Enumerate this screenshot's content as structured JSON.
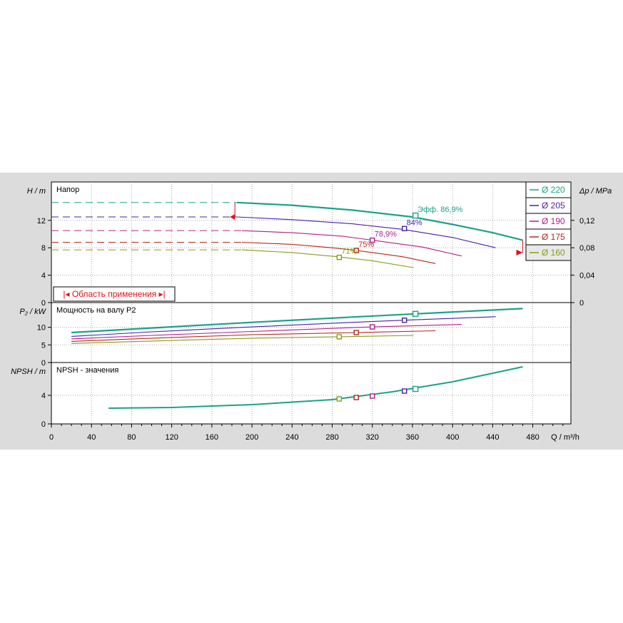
{
  "chart_data": {
    "type": "line",
    "x_unit_label": "Q / m³/h",
    "x_ticks": [
      0,
      40,
      80,
      120,
      160,
      200,
      240,
      280,
      320,
      360,
      400,
      440,
      480
    ],
    "xlim": [
      0,
      518
    ],
    "application_range_label": "Область применения",
    "series": [
      {
        "name": "Ø 220",
        "color": "#1aa387",
        "width": 2.2
      },
      {
        "name": "Ø 205",
        "color": "#4b1fa8",
        "width": 1.1
      },
      {
        "name": "Ø 190",
        "color": "#b0208a",
        "width": 1.1
      },
      {
        "name": "Ø 175",
        "color": "#b02a1a",
        "width": 1.1
      },
      {
        "name": "Ø 160",
        "color": "#8b9a1a",
        "width": 1.1
      }
    ],
    "panels": [
      {
        "id": "head",
        "title": "Напор",
        "ylabel": "H / m",
        "ylim": [
          0,
          17.6
        ],
        "y_ticks": [
          0,
          4,
          8,
          12
        ],
        "secondary_ylabel": "Δp / MPa",
        "secondary_ticks": [
          "0",
          "0,04",
          "0,08",
          "0,12"
        ],
        "curves": [
          {
            "x": [
              185,
              240,
              300,
              360,
              400,
              440,
              470
            ],
            "y": [
              14.6,
              14.2,
              13.5,
              12.5,
              11.4,
              10.2,
              9.1
            ],
            "dash_to": 185
          },
          {
            "x": [
              185,
              240,
              300,
              350,
              400,
              443
            ],
            "y": [
              12.5,
              12.1,
              11.5,
              10.7,
              9.5,
              8.0
            ],
            "dash_to": 185
          },
          {
            "x": [
              190,
              240,
              290,
              320,
              370,
              409
            ],
            "y": [
              10.5,
              10.2,
              9.7,
              9.1,
              8.1,
              6.8
            ],
            "dash_to": 190
          },
          {
            "x": [
              190,
              240,
              280,
              305,
              350,
              383
            ],
            "y": [
              8.8,
              8.5,
              8.0,
              7.6,
              6.7,
              5.7
            ],
            "dash_to": 190
          },
          {
            "x": [
              190,
              240,
              285,
              320,
              361
            ],
            "y": [
              7.7,
              7.3,
              6.7,
              6.1,
              5.1
            ],
            "dash_to": 190
          }
        ],
        "markers": [
          {
            "series": 0,
            "x": 363,
            "y": 12.7,
            "label": "Эфф.  86,9%"
          },
          {
            "series": 1,
            "x": 352,
            "y": 10.8,
            "label": "84%"
          },
          {
            "series": 2,
            "x": 320,
            "y": 9.1,
            "label": "78,9%"
          },
          {
            "series": 3,
            "x": 304,
            "y": 7.6,
            "label": "75%"
          },
          {
            "series": 4,
            "x": 287,
            "y": 6.6,
            "label": "71%"
          }
        ]
      },
      {
        "id": "power",
        "title": "Мощность на валу P2",
        "ylabel": "P₂ / kW",
        "ylim": [
          0,
          17
        ],
        "y_ticks": [
          0,
          5,
          10
        ],
        "curves": [
          {
            "x": [
              20,
              100,
              200,
              300,
              363,
              470
            ],
            "y": [
              8.5,
              9.8,
              11.4,
              12.9,
              13.8,
              15.3
            ],
            "dash_to": 40
          },
          {
            "x": [
              20,
              100,
              200,
              300,
              352,
              443
            ],
            "y": [
              7.4,
              8.7,
              10.1,
              11.4,
              12.0,
              13.0
            ],
            "dash_to": 40
          },
          {
            "x": [
              20,
              100,
              200,
              300,
              320,
              409
            ],
            "y": [
              6.7,
              7.7,
              8.8,
              9.9,
              10.1,
              10.8
            ],
            "dash_to": 40
          },
          {
            "x": [
              20,
              100,
              200,
              304,
              383
            ],
            "y": [
              6.0,
              6.9,
              7.9,
              8.5,
              9.0
            ],
            "dash_to": 40
          },
          {
            "x": [
              20,
              100,
              200,
              287,
              361
            ],
            "y": [
              5.4,
              6.1,
              6.9,
              7.3,
              7.7
            ],
            "dash_to": 40
          }
        ],
        "markers": [
          {
            "series": 0,
            "x": 363,
            "y": 13.8
          },
          {
            "series": 1,
            "x": 352,
            "y": 12.0
          },
          {
            "series": 2,
            "x": 320,
            "y": 10.1
          },
          {
            "series": 3,
            "x": 304,
            "y": 8.5
          },
          {
            "series": 4,
            "x": 287,
            "y": 7.3
          }
        ]
      },
      {
        "id": "npsh",
        "title": "NPSH - значения",
        "ylabel": "NPSH / m",
        "ylim": [
          0,
          8.6
        ],
        "y_ticks": [
          0,
          4
        ],
        "curves": [
          {
            "x": [
              57,
              120,
              200,
              280,
              340,
              400,
              440,
              470
            ],
            "y": [
              2.2,
              2.3,
              2.7,
              3.4,
              4.5,
              5.9,
              7.1,
              8.0
            ],
            "dash_to": 75
          }
        ],
        "markers": [
          {
            "series": 4,
            "x": 287,
            "y": 3.5
          },
          {
            "series": 3,
            "x": 304,
            "y": 3.7
          },
          {
            "series": 2,
            "x": 320,
            "y": 3.9
          },
          {
            "series": 1,
            "x": 352,
            "y": 4.6
          },
          {
            "series": 0,
            "x": 363,
            "y": 4.9
          }
        ]
      }
    ]
  }
}
